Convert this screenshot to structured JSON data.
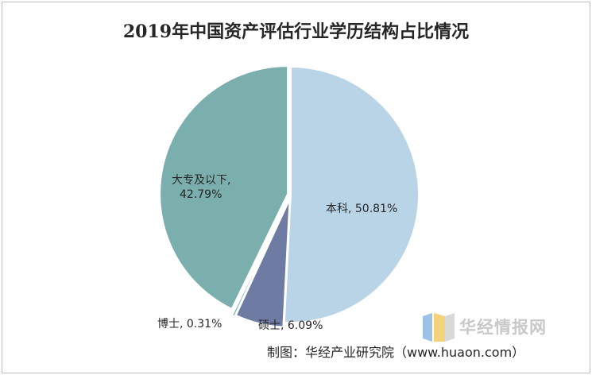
{
  "chart_data": {
    "type": "pie",
    "title": "2019年中国资产评估行业学历结构占比情况",
    "slices": [
      {
        "label": "本科",
        "value": 50.81,
        "display": "本科, 50.81%",
        "color": "#b8d4e6"
      },
      {
        "label": "硕士",
        "value": 6.09,
        "display": "硕士, 6.09%",
        "color": "#6e7ba3"
      },
      {
        "label": "博士",
        "value": 0.31,
        "display": "博士, 0.31%",
        "color": "#5aa6a6"
      },
      {
        "label": "大专及以下",
        "value": 42.79,
        "display_line1": "大专及以下,",
        "display_line2": "42.79%",
        "color": "#7aafae"
      }
    ]
  },
  "watermark": {
    "text": "华经情报网"
  },
  "source": "制图：华经产业研究院（www.huaon.com）"
}
